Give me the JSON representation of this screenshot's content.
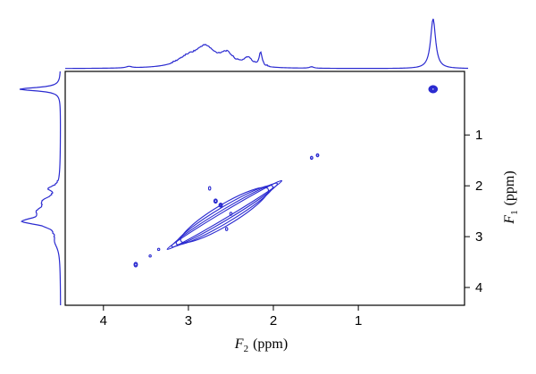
{
  "chart_data": {
    "type": "contour",
    "xlabel": {
      "symbol": "F",
      "subscript": "2",
      "unit": "(ppm)"
    },
    "ylabel": {
      "symbol": "F",
      "subscript": "1",
      "unit": "(ppm)"
    },
    "x_direction": "reversed",
    "y_direction": "reversed",
    "xlim": [
      4.45,
      -0.25
    ],
    "ylim": [
      -0.25,
      4.35
    ],
    "x_ticks": [
      4,
      3,
      2,
      1
    ],
    "y_ticks": [
      1,
      2,
      3,
      4
    ],
    "grid": false,
    "color": "#2a2ad0",
    "projections": {
      "top": {
        "axis": "F2",
        "peaks": [
          {
            "ppm": 0.12,
            "height": 1.0,
            "width": 0.035
          },
          {
            "ppm": 2.15,
            "height": 0.28,
            "width": 0.02
          },
          {
            "ppm": 2.3,
            "height": 0.16,
            "width": 0.06
          },
          {
            "ppm": 2.55,
            "height": 0.24,
            "width": 0.1
          },
          {
            "ppm": 2.8,
            "height": 0.36,
            "width": 0.13
          },
          {
            "ppm": 3.0,
            "height": 0.18,
            "width": 0.16
          },
          {
            "ppm": 1.55,
            "height": 0.03,
            "width": 0.03
          },
          {
            "ppm": 3.7,
            "height": 0.03,
            "width": 0.04
          }
        ]
      },
      "left": {
        "axis": "F1",
        "peaks": [
          {
            "ppm": 0.1,
            "height": 1.0,
            "width": 0.04
          },
          {
            "ppm": 2.05,
            "height": 0.22,
            "width": 0.05
          },
          {
            "ppm": 2.3,
            "height": 0.3,
            "width": 0.1
          },
          {
            "ppm": 2.7,
            "height": 0.8,
            "width": 0.08
          },
          {
            "ppm": 2.5,
            "height": 0.4,
            "width": 0.12
          },
          {
            "ppm": 3.1,
            "height": 0.1,
            "width": 0.15
          }
        ]
      }
    },
    "cross_peaks": [
      {
        "x": 0.12,
        "y": 0.1,
        "rx": 0.05,
        "ry": 0.07,
        "levels": 5
      },
      {
        "x": 1.55,
        "y": 1.45,
        "rx": 0.014,
        "ry": 0.03,
        "levels": 2
      },
      {
        "x": 1.48,
        "y": 1.4,
        "rx": 0.014,
        "ry": 0.03,
        "levels": 2
      },
      {
        "x": 3.62,
        "y": 3.55,
        "rx": 0.02,
        "ry": 0.045,
        "levels": 2
      },
      {
        "x": 2.75,
        "y": 2.05,
        "rx": 0.008,
        "ry": 0.035,
        "levels": 1
      },
      {
        "x": 2.68,
        "y": 2.3,
        "rx": 0.02,
        "ry": 0.04,
        "levels": 2
      },
      {
        "x": 2.62,
        "y": 2.38,
        "rx": 0.02,
        "ry": 0.04,
        "levels": 2
      },
      {
        "x": 2.5,
        "y": 2.55,
        "rx": 0.01,
        "ry": 0.03,
        "levels": 1
      },
      {
        "x": 2.55,
        "y": 2.85,
        "rx": 0.006,
        "ry": 0.03,
        "levels": 1
      },
      {
        "x": 3.35,
        "y": 3.25,
        "rx": 0.008,
        "ry": 0.02,
        "levels": 1
      },
      {
        "x": 3.45,
        "y": 3.38,
        "rx": 0.008,
        "ry": 0.02,
        "levels": 1
      }
    ],
    "diagonal": {
      "from": 3.25,
      "to": 1.9,
      "widths_ppm": [
        0.05,
        0.1,
        0.16,
        0.22
      ]
    }
  }
}
